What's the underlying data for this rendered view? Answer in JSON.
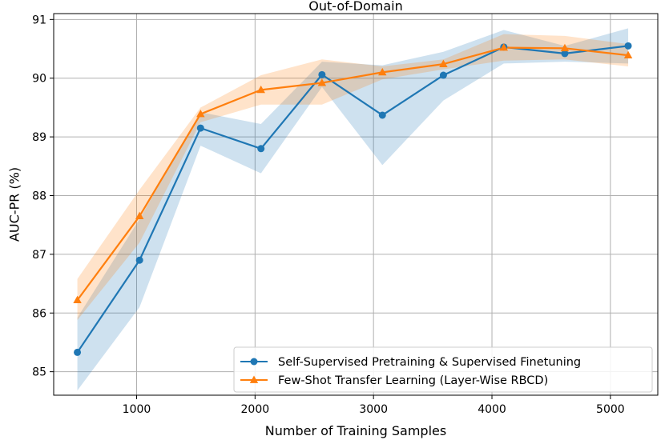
{
  "chart_data": {
    "type": "line",
    "title": "Out-of-Domain",
    "xlabel": "Number of Training Samples",
    "ylabel": "AUC-PR (%)",
    "xlim": [
      300,
      5400
    ],
    "ylim": [
      84.6,
      91.1
    ],
    "xticks": [
      1000,
      2000,
      3000,
      4000,
      5000
    ],
    "yticks": [
      85,
      86,
      87,
      88,
      89,
      90,
      91
    ],
    "grid": true,
    "legend_position": "lower-right",
    "x": [
      500,
      1025,
      1540,
      2050,
      2565,
      3075,
      3590,
      4100,
      4615,
      5150
    ],
    "series": [
      {
        "name": "Self-Supervised Pretraining & Supervised Finetuning",
        "color": "#1f77b4",
        "marker": "circle",
        "values": [
          85.33,
          86.9,
          89.15,
          88.8,
          90.06,
          89.37,
          90.05,
          90.53,
          90.42,
          90.55
        ],
        "upper": [
          85.92,
          87.6,
          89.42,
          89.22,
          90.28,
          90.22,
          90.45,
          90.82,
          90.55,
          90.85
        ],
        "lower": [
          84.68,
          86.1,
          88.85,
          88.38,
          89.85,
          88.52,
          89.62,
          90.25,
          90.28,
          90.25
        ]
      },
      {
        "name": "Few-Shot Transfer Learning (Layer-Wise RBCD)",
        "color": "#ff7f0e",
        "marker": "triangle",
        "values": [
          86.22,
          87.65,
          89.39,
          89.8,
          89.92,
          90.1,
          90.24,
          90.52,
          90.51,
          90.39
        ],
        "upper": [
          86.58,
          88.1,
          89.5,
          90.05,
          90.32,
          90.2,
          90.32,
          90.75,
          90.72,
          90.58
        ],
        "lower": [
          85.88,
          87.2,
          89.25,
          89.55,
          89.55,
          89.98,
          90.15,
          90.3,
          90.32,
          90.2
        ]
      }
    ]
  }
}
